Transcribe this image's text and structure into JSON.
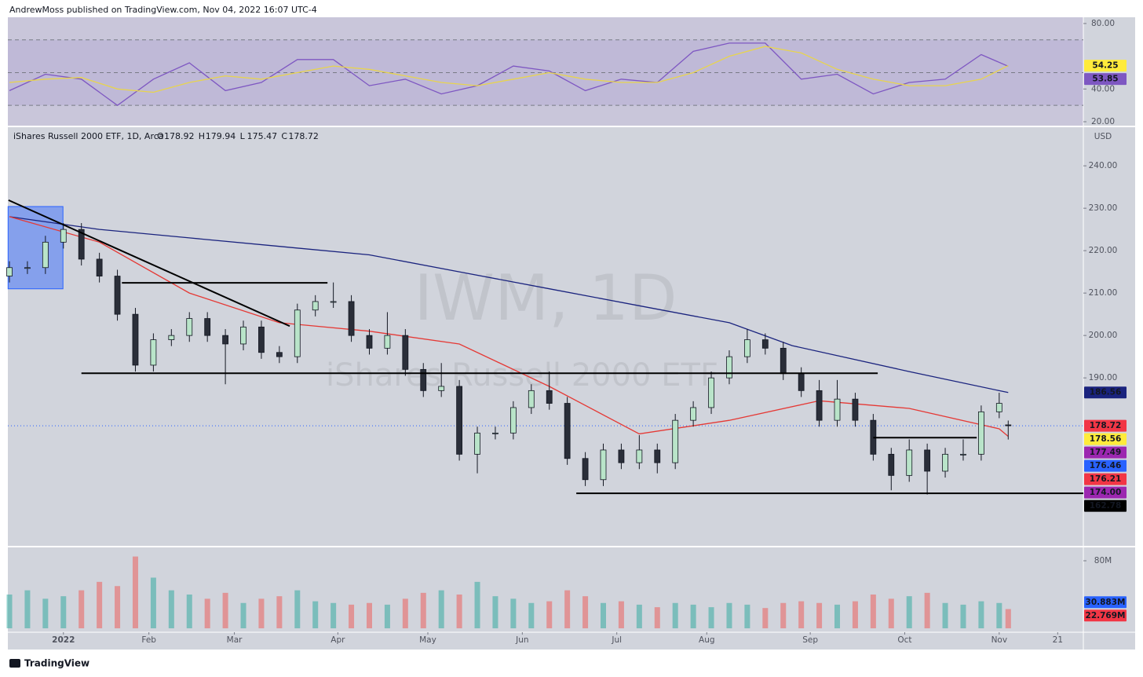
{
  "header": {
    "published": "AndrewMoss published on TradingView.com, Nov 04, 2022 16:07 UTC-4"
  },
  "footer": {
    "brand": "TradingView"
  },
  "chart_data": [
    {
      "type": "line",
      "xlim": [
        -0.35,
        238.7
      ],
      "ylim": [
        17.6,
        83.8
      ],
      "yticks": [
        {
          "value": 80,
          "label": "80.00"
        },
        {
          "value": 40,
          "label": "40.00"
        },
        {
          "value": 20,
          "label": "20.00"
        }
      ],
      "levels": [
        70,
        50,
        30
      ],
      "x": [
        0,
        8,
        16,
        24,
        32,
        40,
        48,
        56,
        64,
        72,
        80,
        88,
        96,
        104,
        112,
        120,
        128,
        136,
        144,
        152,
        160,
        168,
        176,
        184,
        192,
        200,
        208,
        216,
        222
      ],
      "series": [
        {
          "color": "#7e57c2",
          "values": [
            39,
            49,
            46,
            30,
            46,
            56,
            39,
            44,
            58,
            58,
            42,
            46,
            37,
            42,
            54,
            51,
            39,
            46,
            44,
            63,
            68,
            68,
            46,
            49,
            37,
            44,
            46,
            61,
            53.85
          ]
        },
        {
          "color": "#e8d44d",
          "values": [
            44,
            46,
            47,
            40,
            38,
            44,
            48,
            46,
            50,
            54,
            52,
            48,
            44,
            42,
            46,
            50,
            46,
            44,
            44,
            50,
            60,
            66,
            62,
            52,
            46,
            42,
            42,
            46,
            54.25
          ]
        }
      ],
      "tags": [
        {
          "value": 54.25,
          "color": "#ffeb3b",
          "text_color": "#000000"
        },
        {
          "value": 53.85,
          "color": "#7e57c2",
          "text_color": "#ffffff"
        }
      ]
    },
    {
      "type": "candlestick",
      "symbol": "iShares Russell 2000 ETF, 1D, Arca",
      "ohlc": [
        {
          "key": "O",
          "value": 178.92
        },
        {
          "key": "H",
          "value": 179.94
        },
        {
          "key": "L",
          "value": 175.47
        },
        {
          "key": "C",
          "value": 178.72
        }
      ],
      "watermark": [
        "IWM, 1D",
        "iShares Russell 2000 ETF"
      ],
      "unit": "USD",
      "xlim": [
        -0.35,
        238.7
      ],
      "ylim": [
        150.4,
        249.1
      ],
      "yticks": [
        {
          "value": 240,
          "label": "240.00"
        },
        {
          "value": 230,
          "label": "230.00"
        },
        {
          "value": 220,
          "label": "220.00"
        },
        {
          "value": 210,
          "label": "210.00"
        },
        {
          "value": 200,
          "label": "200.00"
        },
        {
          "value": 190,
          "label": "190.00"
        }
      ],
      "last_price": 178.72,
      "x": [
        0,
        4,
        8,
        12,
        16,
        20,
        24,
        28,
        32,
        36,
        40,
        44,
        48,
        52,
        56,
        60,
        64,
        68,
        72,
        76,
        80,
        84,
        88,
        92,
        96,
        100,
        104,
        108,
        112,
        116,
        120,
        124,
        128,
        132,
        136,
        140,
        144,
        148,
        152,
        156,
        160,
        164,
        168,
        172,
        176,
        180,
        184,
        188,
        192,
        196,
        200,
        204,
        208,
        212,
        216,
        220,
        222
      ],
      "open": [
        214,
        216,
        216,
        222,
        225,
        218,
        214,
        205,
        193,
        199,
        200,
        204,
        200,
        198,
        202,
        196,
        195,
        206,
        208,
        208,
        200,
        197,
        200,
        192,
        187,
        188,
        172,
        177,
        177,
        183,
        187,
        184,
        171,
        166,
        173,
        170,
        173,
        170,
        180,
        183,
        190,
        195,
        199,
        197,
        191,
        187,
        180,
        185,
        180,
        172,
        167,
        173,
        168,
        172,
        172,
        182,
        178.92
      ],
      "high": [
        217.5,
        217.5,
        223.5,
        226.5,
        226.5,
        219.5,
        215.5,
        206.5,
        200.5,
        201.5,
        205.5,
        205.5,
        201.5,
        203.5,
        203.5,
        197.5,
        207.5,
        209.5,
        212.5,
        209.5,
        201.5,
        205.5,
        201.5,
        193.5,
        193.5,
        189.5,
        178.5,
        178.5,
        184.5,
        188.5,
        191.5,
        185.5,
        172.5,
        174.5,
        174.5,
        176.5,
        174.5,
        181.5,
        184.5,
        191.5,
        196.5,
        201.5,
        200.5,
        198.5,
        192.5,
        189.5,
        189.5,
        186.5,
        181.5,
        173.5,
        175.5,
        174.5,
        173.5,
        175.5,
        183.5,
        186.5,
        179.94
      ],
      "low": [
        212.5,
        214.5,
        214.5,
        220.5,
        216.5,
        212.5,
        203.5,
        191.5,
        191.5,
        197.5,
        198.5,
        198.5,
        188.5,
        196.5,
        194.5,
        193.5,
        193.5,
        204.5,
        206.5,
        198.5,
        195.5,
        195.5,
        190.5,
        185.5,
        185.5,
        170.5,
        167.5,
        175.5,
        175.5,
        181.5,
        182.5,
        169.5,
        164.5,
        164.5,
        168.5,
        168.5,
        167.5,
        168.5,
        178.5,
        181.5,
        188.5,
        193.5,
        195.5,
        189.5,
        185.5,
        178.5,
        178.5,
        178.5,
        170.5,
        163.5,
        165.5,
        162.5,
        166.5,
        170.5,
        170.5,
        180.5,
        175.47
      ],
      "close": [
        216,
        216,
        222,
        225,
        218,
        214,
        205,
        193,
        199,
        200,
        204,
        200,
        198,
        202,
        196,
        195,
        206,
        208,
        208,
        200,
        197,
        200,
        192,
        187,
        188,
        172,
        177,
        177,
        183,
        187,
        184,
        171,
        166,
        173,
        170,
        173,
        170,
        180,
        183,
        190,
        195,
        199,
        197,
        191,
        187,
        180,
        185,
        180,
        172,
        167,
        173,
        168,
        172,
        172,
        182,
        184,
        178.72
      ],
      "lines": [
        {
          "color": "#1a237e",
          "x": [
            0,
            20,
            40,
            60,
            80,
            100,
            120,
            140,
            160,
            174,
            200,
            220,
            222
          ],
          "values": [
            228,
            225,
            223,
            221,
            219,
            215,
            211,
            207,
            203,
            197.6,
            191.5,
            187,
            186.56
          ]
        },
        {
          "color": "#e53935",
          "x": [
            0,
            20,
            40,
            60,
            80,
            100,
            120,
            140,
            160,
            180,
            200,
            220,
            222
          ],
          "values": [
            228,
            222,
            210,
            203,
            201,
            198,
            188,
            176.8,
            180,
            184.6,
            182.8,
            178,
            176.21
          ]
        }
      ],
      "drawings": [
        {
          "x": [
            -0.2,
            62.3
          ],
          "y": [
            231.9,
            202.2
          ]
        },
        {
          "x": [
            25,
            70.7
          ],
          "y": [
            212.4,
            212.4
          ]
        },
        {
          "x": [
            16,
            193
          ],
          "y": [
            191.1,
            191.1
          ]
        },
        {
          "x": [
            126,
            238.7
          ],
          "y": [
            162.78,
            162.78
          ]
        },
        {
          "x": [
            192,
            215
          ],
          "y": [
            175.9,
            175.9
          ]
        }
      ],
      "box": {
        "x": [
          -0.3,
          11.9
        ],
        "y": [
          211,
          230.4
        ],
        "color": "#2962ff"
      },
      "tags": [
        {
          "value": 186.56,
          "color": "#1a237e",
          "text_color": "#ffffff"
        },
        {
          "value": 178.72,
          "color": "#f23645",
          "text_color": "#ffffff"
        },
        {
          "value": 178.56,
          "color": "#ffeb3b",
          "text_color": "#000000"
        },
        {
          "value": 177.49,
          "color": "#9c27b0",
          "text_color": "#ffffff"
        },
        {
          "value": 176.46,
          "color": "#2962ff",
          "text_color": "#ffffff"
        },
        {
          "value": 176.21,
          "color": "#f23645",
          "text_color": "#ffffff"
        },
        {
          "value": 174,
          "label": "174.00",
          "color": "#9c27b0",
          "text_color": "#ffffff"
        },
        {
          "value": 162.78,
          "color": "#000000",
          "text_color": "#ffffff"
        }
      ]
    },
    {
      "type": "bar",
      "xlim": [
        -0.35,
        238.7
      ],
      "ylim": [
        0,
        95.8
      ],
      "yticks": [
        {
          "value": 80,
          "label": "80M"
        }
      ],
      "x": [
        0,
        4,
        8,
        12,
        16,
        20,
        24,
        28,
        32,
        36,
        40,
        44,
        48,
        52,
        56,
        60,
        64,
        68,
        72,
        76,
        80,
        84,
        88,
        92,
        96,
        100,
        104,
        108,
        112,
        116,
        120,
        124,
        128,
        132,
        136,
        140,
        144,
        148,
        152,
        156,
        160,
        164,
        168,
        172,
        176,
        180,
        184,
        188,
        192,
        196,
        200,
        204,
        208,
        212,
        216,
        220,
        222
      ],
      "values": [
        40,
        45,
        35,
        38,
        45,
        55,
        50,
        85,
        60,
        45,
        40,
        35,
        42,
        30,
        35,
        38,
        45,
        32,
        30,
        28,
        30,
        28,
        35,
        42,
        45,
        40,
        55,
        38,
        35,
        30,
        32,
        45,
        38,
        30,
        32,
        28,
        25,
        30,
        28,
        25,
        30,
        28,
        24,
        30,
        32,
        30,
        28,
        32,
        40,
        35,
        38,
        42,
        30,
        28,
        32,
        30,
        22.769
      ],
      "up_color": "rgba(38,166,154,0.5)",
      "down_color": "rgba(239,83,80,0.5)",
      "tags": [
        {
          "value": 30.883,
          "label": "30.883M",
          "color": "#2962ff",
          "text_color": "#ffffff"
        },
        {
          "value": 22.769,
          "label": "22.769M",
          "color": "#f23645",
          "text_color": "#ffffff"
        }
      ],
      "xticks": [
        {
          "value": 12,
          "label": "2022"
        },
        {
          "value": 31,
          "label": "Feb"
        },
        {
          "value": 50,
          "label": "Mar"
        },
        {
          "value": 73,
          "label": "Apr"
        },
        {
          "value": 93,
          "label": "May"
        },
        {
          "value": 114,
          "label": "Jun"
        },
        {
          "value": 135,
          "label": "Jul"
        },
        {
          "value": 155,
          "label": "Aug"
        },
        {
          "value": 178,
          "label": "Sep"
        },
        {
          "value": 199,
          "label": "Oct"
        },
        {
          "value": 220,
          "label": "Nov"
        },
        {
          "value": 233,
          "label": "21"
        }
      ]
    }
  ]
}
